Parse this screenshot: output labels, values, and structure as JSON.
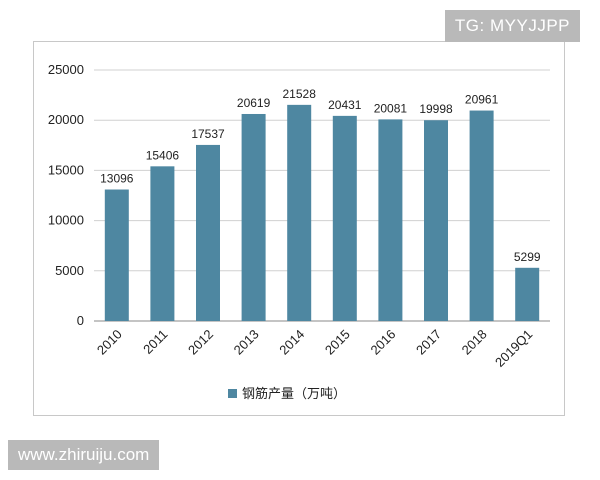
{
  "watermarks": {
    "top_right": "TG: MYYJJPP",
    "bottom_left": "www.zhiruiju.com"
  },
  "colors": {
    "bar": "#4e87a1",
    "grid": "#d0d0d0",
    "axis": "#888888"
  },
  "chart_data": {
    "type": "bar",
    "categories": [
      "2010",
      "2011",
      "2012",
      "2013",
      "2014",
      "2015",
      "2016",
      "2017",
      "2018",
      "2019Q1"
    ],
    "series": [
      {
        "name": "钢筋产量（万吨）",
        "values": [
          13096,
          15406,
          17537,
          20619,
          21528,
          20431,
          20081,
          19998,
          20961,
          5299
        ]
      }
    ],
    "data_labels": [
      "13096",
      "15406",
      "17537",
      "20619",
      "21528",
      "20431",
      "20081",
      "19998",
      "20961",
      "5299"
    ],
    "yticks": [
      "0",
      "5000",
      "10000",
      "15000",
      "20000",
      "25000"
    ],
    "ylim": [
      0,
      25000
    ],
    "grid": true,
    "legend_position": "bottom"
  }
}
